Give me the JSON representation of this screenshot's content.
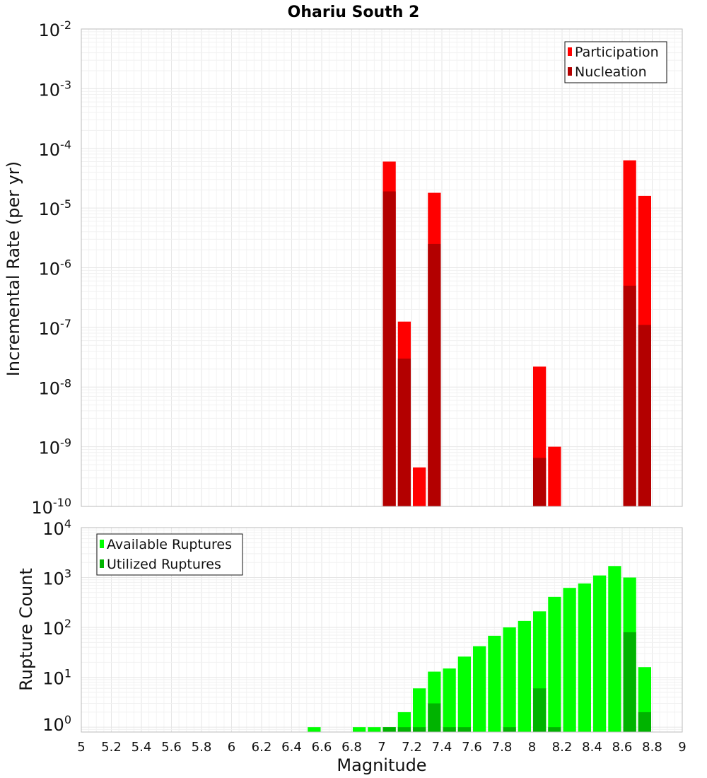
{
  "chart_data": [
    {
      "type": "bar",
      "title": "Ohariu South 2",
      "ylabel": "Incremental Rate (per yr)",
      "xlabel": "",
      "yscale": "log",
      "ylim": [
        1e-10,
        0.01
      ],
      "xlim": [
        5,
        9
      ],
      "ytick_exponents": [
        "-10",
        "-9",
        "-8",
        "-7",
        "-6",
        "-5",
        "-4",
        "-3",
        "-2"
      ],
      "ytick_base": "10",
      "legend_position": "top-right",
      "series": [
        {
          "name": "Participation",
          "color": "#ff0000",
          "points": [
            {
              "m": 7.05,
              "v": 6e-05
            },
            {
              "m": 7.15,
              "v": 1.25e-07
            },
            {
              "m": 7.25,
              "v": 4.5e-10
            },
            {
              "m": 7.35,
              "v": 1.8e-05
            },
            {
              "m": 8.05,
              "v": 2.2e-08
            },
            {
              "m": 8.15,
              "v": 1e-09
            },
            {
              "m": 8.65,
              "v": 6.3e-05
            },
            {
              "m": 8.75,
              "v": 1.6e-05
            }
          ]
        },
        {
          "name": "Nucleation",
          "color": "#b30000",
          "points": [
            {
              "m": 7.05,
              "v": 1.9e-05
            },
            {
              "m": 7.15,
              "v": 3e-08
            },
            {
              "m": 7.35,
              "v": 2.5e-06
            },
            {
              "m": 8.05,
              "v": 6.5e-10
            },
            {
              "m": 8.65,
              "v": 5e-07
            },
            {
              "m": 8.75,
              "v": 1.1e-07
            }
          ]
        }
      ]
    },
    {
      "type": "bar",
      "title": "",
      "ylabel": "Rupture Count",
      "xlabel": "Magnitude",
      "yscale": "log",
      "ylim": [
        0.8,
        10000
      ],
      "xlim": [
        5,
        9
      ],
      "ytick_exponents": [
        "0",
        "1",
        "2",
        "3",
        "4"
      ],
      "ytick_base": "10",
      "xticks": [
        "5",
        "5.2",
        "5.4",
        "5.6",
        "5.8",
        "6",
        "6.2",
        "6.4",
        "6.6",
        "6.8",
        "7",
        "7.2",
        "7.4",
        "7.6",
        "7.8",
        "8",
        "8.2",
        "8.4",
        "8.6",
        "8.8",
        "9"
      ],
      "legend_position": "top-left",
      "series": [
        {
          "name": "Available Ruptures",
          "color": "#00ff00",
          "points": [
            {
              "m": 6.55,
              "v": 1
            },
            {
              "m": 6.85,
              "v": 1
            },
            {
              "m": 6.95,
              "v": 1
            },
            {
              "m": 7.05,
              "v": 1
            },
            {
              "m": 7.15,
              "v": 2
            },
            {
              "m": 7.25,
              "v": 6
            },
            {
              "m": 7.35,
              "v": 13
            },
            {
              "m": 7.45,
              "v": 15
            },
            {
              "m": 7.55,
              "v": 26
            },
            {
              "m": 7.65,
              "v": 42
            },
            {
              "m": 7.75,
              "v": 68
            },
            {
              "m": 7.85,
              "v": 100
            },
            {
              "m": 7.95,
              "v": 135
            },
            {
              "m": 8.05,
              "v": 210
            },
            {
              "m": 8.15,
              "v": 410
            },
            {
              "m": 8.25,
              "v": 620
            },
            {
              "m": 8.35,
              "v": 760
            },
            {
              "m": 8.45,
              "v": 1100
            },
            {
              "m": 8.55,
              "v": 1700
            },
            {
              "m": 8.65,
              "v": 1000
            },
            {
              "m": 8.75,
              "v": 16
            }
          ]
        },
        {
          "name": "Utilized Ruptures",
          "color": "#00b300",
          "points": [
            {
              "m": 7.05,
              "v": 1
            },
            {
              "m": 7.15,
              "v": 1
            },
            {
              "m": 7.25,
              "v": 1
            },
            {
              "m": 7.35,
              "v": 3
            },
            {
              "m": 7.45,
              "v": 1
            },
            {
              "m": 7.55,
              "v": 1
            },
            {
              "m": 7.85,
              "v": 1
            },
            {
              "m": 8.05,
              "v": 6
            },
            {
              "m": 8.15,
              "v": 1
            },
            {
              "m": 8.65,
              "v": 80
            },
            {
              "m": 8.75,
              "v": 2
            }
          ]
        }
      ]
    }
  ]
}
